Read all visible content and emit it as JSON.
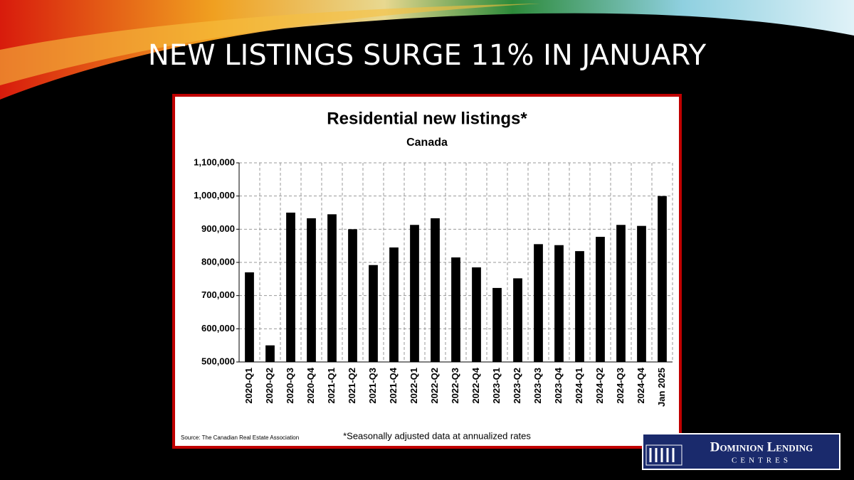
{
  "slide_title": "NEW LISTINGS SURGE 11% IN JANUARY",
  "chart_data": {
    "type": "bar",
    "title": "Residential new listings*",
    "subtitle": "Canada",
    "categories": [
      "2020-Q1",
      "2020-Q2",
      "2020-Q3",
      "2020-Q4",
      "2021-Q1",
      "2021-Q2",
      "2021-Q3",
      "2021-Q4",
      "2022-Q1",
      "2022-Q2",
      "2022-Q3",
      "2022-Q4",
      "2023-Q1",
      "2023-Q2",
      "2023-Q3",
      "2023-Q4",
      "2024-Q1",
      "2024-Q2",
      "2024-Q3",
      "2024-Q4",
      "Jan 2025"
    ],
    "values": [
      770000,
      550000,
      950000,
      933000,
      945000,
      900000,
      792000,
      845000,
      913000,
      933000,
      815000,
      785000,
      723000,
      752000,
      855000,
      852000,
      834000,
      877000,
      913000,
      910000,
      1000000
    ],
    "color": "#000000",
    "ylim": [
      500000,
      1100000
    ],
    "yticks": [
      {
        "value": 500000,
        "label": "500,000"
      },
      {
        "value": 600000,
        "label": "600,000"
      },
      {
        "value": 700000,
        "label": "700,000"
      },
      {
        "value": 800000,
        "label": "800,000"
      },
      {
        "value": 900000,
        "label": "900,000"
      },
      {
        "value": 1000000,
        "label": "1,000,000"
      },
      {
        "value": 1100000,
        "label": "1,100,000"
      }
    ],
    "grid": true,
    "source": "Source: The Canadian Real Estate Association",
    "footnote": "*Seasonally adjusted data at annualized rates"
  },
  "logo": {
    "name": "Dominion Lending",
    "tagline": "CENTRES"
  }
}
